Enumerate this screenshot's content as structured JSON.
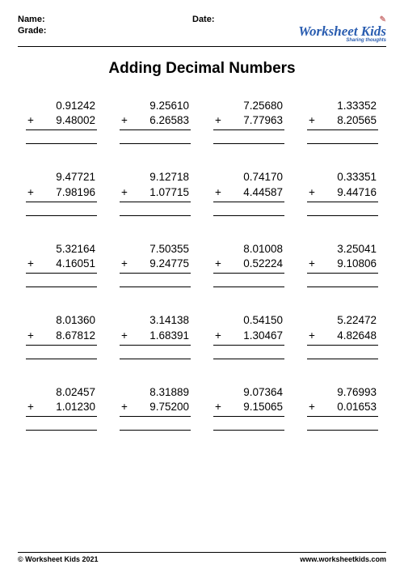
{
  "header": {
    "name_label": "Name:",
    "grade_label": "Grade:",
    "date_label": "Date:"
  },
  "logo": {
    "main": "Worksheet Kids",
    "sub": "Sharing thoughts"
  },
  "title": "Adding Decimal Numbers",
  "problems": [
    {
      "a": "0.91242",
      "b": "9.48002"
    },
    {
      "a": "9.25610",
      "b": "6.26583"
    },
    {
      "a": "7.25680",
      "b": "7.77963"
    },
    {
      "a": "1.33352",
      "b": "8.20565"
    },
    {
      "a": "9.47721",
      "b": "7.98196"
    },
    {
      "a": "9.12718",
      "b": "1.07715"
    },
    {
      "a": "0.74170",
      "b": "4.44587"
    },
    {
      "a": "0.33351",
      "b": "9.44716"
    },
    {
      "a": "5.32164",
      "b": "4.16051"
    },
    {
      "a": "7.50355",
      "b": "9.24775"
    },
    {
      "a": "8.01008",
      "b": "0.52224"
    },
    {
      "a": "3.25041",
      "b": "9.10806"
    },
    {
      "a": "8.01360",
      "b": "8.67812"
    },
    {
      "a": "3.14138",
      "b": "1.68391"
    },
    {
      "a": "0.54150",
      "b": "1.30467"
    },
    {
      "a": "5.22472",
      "b": "4.82648"
    },
    {
      "a": "8.02457",
      "b": "1.01230"
    },
    {
      "a": "8.31889",
      "b": "9.75200"
    },
    {
      "a": "9.07364",
      "b": "9.15065"
    },
    {
      "a": "9.76993",
      "b": "0.01653"
    }
  ],
  "operator": "+",
  "footer": {
    "copyright": "© Worksheet Kids 2021",
    "url": "www.worksheetkids.com"
  },
  "style": {
    "page_bg": "#ffffff",
    "text_color": "#000000",
    "logo_color": "#2a5db0",
    "columns": 4,
    "rows": 5,
    "problem_fontsize": 13.5,
    "title_fontsize": 19
  }
}
